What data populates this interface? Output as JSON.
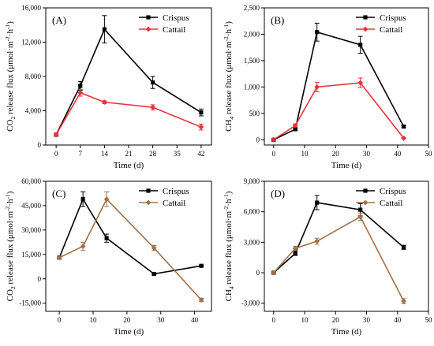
{
  "chart_data": [
    {
      "type": "line",
      "panel": "(A)",
      "xlabel": "Time (d)",
      "ylabel_parts": [
        "CO",
        "2",
        " release flux (μmol·m",
        "-2",
        "·h",
        "-1",
        ")"
      ],
      "x_ticks": [
        0,
        7,
        14,
        21,
        28,
        35,
        42
      ],
      "x_range": [
        -3,
        45
      ],
      "y_ticks": [
        0,
        4000,
        8000,
        12000,
        16000
      ],
      "y_tick_labels": [
        "0",
        "4,000",
        "8,000",
        "12,000",
        "16,000"
      ],
      "y_range": [
        0,
        16000
      ],
      "legend_position": "top-right",
      "series": [
        {
          "name": "Crispus",
          "color": "#000000",
          "marker": "square",
          "x": [
            0,
            7,
            14,
            28,
            42
          ],
          "y": [
            1200,
            6900,
            13500,
            7300,
            3800
          ],
          "err": [
            150,
            500,
            1600,
            700,
            400
          ]
        },
        {
          "name": "Cattail",
          "color": "#e8323c",
          "marker": "diamond",
          "x": [
            0,
            7,
            14,
            28,
            42
          ],
          "y": [
            1200,
            6100,
            5000,
            4400,
            2100
          ],
          "err": [
            150,
            400,
            150,
            300,
            350
          ]
        }
      ]
    },
    {
      "type": "line",
      "panel": "(B)",
      "xlabel": "Time (d)",
      "ylabel_parts": [
        "CH",
        "4",
        " release flux (μmol·m",
        "-2",
        "·h",
        "-1",
        ")"
      ],
      "x_ticks": [
        0,
        10,
        20,
        30,
        40,
        50
      ],
      "x_range": [
        -3,
        50
      ],
      "y_ticks": [
        0,
        500,
        1000,
        1500,
        2000,
        2500
      ],
      "y_tick_labels": [
        "0",
        "500",
        "1,000",
        "1,500",
        "2,000",
        "2,500"
      ],
      "y_range": [
        -100,
        2500
      ],
      "legend_position": "top-right",
      "series": [
        {
          "name": "Crispus",
          "color": "#000000",
          "marker": "square",
          "x": [
            0,
            7,
            14,
            28,
            42
          ],
          "y": [
            0,
            200,
            2040,
            1800,
            250
          ],
          "err": [
            10,
            20,
            170,
            160,
            20
          ]
        },
        {
          "name": "Cattail",
          "color": "#e8323c",
          "marker": "diamond",
          "x": [
            0,
            7,
            14,
            28,
            42
          ],
          "y": [
            0,
            270,
            1000,
            1080,
            30
          ],
          "err": [
            10,
            30,
            90,
            90,
            10
          ]
        }
      ]
    },
    {
      "type": "line",
      "panel": "(C)",
      "xlabel": "Time (d)",
      "ylabel_parts": [
        "CO",
        "2",
        " release flux (μmol·m",
        "-2",
        "·h",
        "-1",
        ")"
      ],
      "x_ticks": [
        0,
        10,
        20,
        30,
        40
      ],
      "x_range": [
        -4,
        45
      ],
      "y_ticks": [
        -15000,
        0,
        15000,
        30000,
        45000,
        60000
      ],
      "y_tick_labels": [
        "-15,000",
        "0",
        "15,000",
        "30,000",
        "45,000",
        "60,000"
      ],
      "y_range": [
        -20000,
        60000
      ],
      "legend_position": "top-right",
      "series": [
        {
          "name": "Crispus",
          "color": "#000000",
          "marker": "square",
          "x": [
            0,
            7,
            14,
            28,
            42
          ],
          "y": [
            13000,
            49000,
            25000,
            3000,
            8000
          ],
          "err": [
            1000,
            4500,
            2500,
            500,
            500
          ]
        },
        {
          "name": "Cattail",
          "color": "#a0714a",
          "marker": "diamond",
          "x": [
            0,
            7,
            14,
            28,
            42
          ],
          "y": [
            13000,
            20000,
            49000,
            19000,
            -13000
          ],
          "err": [
            1000,
            2500,
            4500,
            1500,
            1000
          ]
        }
      ]
    },
    {
      "type": "line",
      "panel": "(D)",
      "xlabel": "Time (d)",
      "ylabel_parts": [
        "CH",
        "4",
        " release flux (μmol·m",
        "-2",
        "·h",
        "-1",
        ")"
      ],
      "x_ticks": [
        0,
        10,
        20,
        30,
        40,
        50
      ],
      "x_range": [
        -3,
        50
      ],
      "y_ticks": [
        -3000,
        0,
        3000,
        6000,
        9000
      ],
      "y_tick_labels": [
        "-3,000",
        "0",
        "3,000",
        "6,000",
        "9,000"
      ],
      "y_range": [
        -3800,
        9000
      ],
      "legend_position": "top-right",
      "series": [
        {
          "name": "Crispus",
          "color": "#000000",
          "marker": "square",
          "x": [
            0,
            7,
            14,
            28,
            42
          ],
          "y": [
            0,
            1900,
            6900,
            6200,
            2500
          ],
          "err": [
            50,
            200,
            700,
            600,
            200
          ]
        },
        {
          "name": "Cattail",
          "color": "#a0714a",
          "marker": "diamond",
          "x": [
            0,
            7,
            14,
            28,
            42
          ],
          "y": [
            0,
            2400,
            3100,
            5500,
            -2800
          ],
          "err": [
            50,
            200,
            300,
            350,
            250
          ]
        }
      ]
    }
  ]
}
